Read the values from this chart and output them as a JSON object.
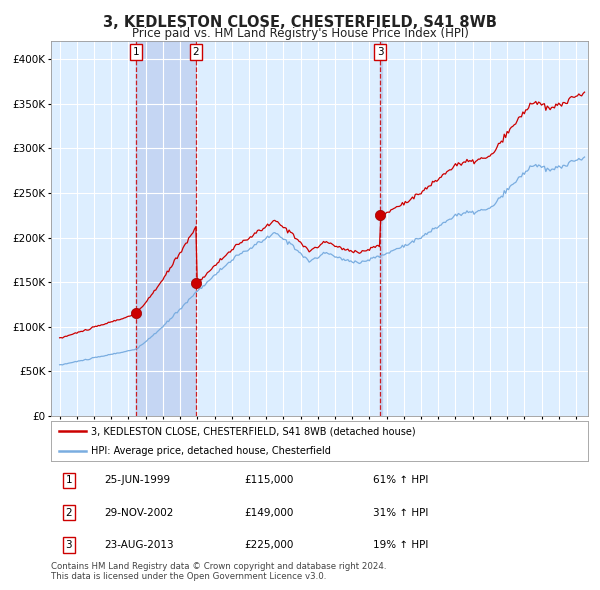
{
  "title": "3, KEDLESTON CLOSE, CHESTERFIELD, S41 8WB",
  "subtitle": "Price paid vs. HM Land Registry's House Price Index (HPI)",
  "table_rows": [
    [
      "1",
      "25-JUN-1999",
      "£115,000",
      "61% ↑ HPI"
    ],
    [
      "2",
      "29-NOV-2002",
      "£149,000",
      "31% ↑ HPI"
    ],
    [
      "3",
      "23-AUG-2013",
      "£225,000",
      "19% ↑ HPI"
    ]
  ],
  "legend_line1": "3, KEDLESTON CLOSE, CHESTERFIELD, S41 8WB (detached house)",
  "legend_line2": "HPI: Average price, detached house, Chesterfield",
  "footer": "Contains HM Land Registry data © Crown copyright and database right 2024.\nThis data is licensed under the Open Government Licence v3.0.",
  "price_color": "#cc0000",
  "hpi_color": "#7aade0",
  "bg_color": "#ffffff",
  "plot_bg": "#ddeeff",
  "grid_color": "#ffffff",
  "shade_color": "#bbccee",
  "dashed_color": "#cc0000",
  "ylim": [
    0,
    420000
  ],
  "yticks": [
    0,
    50000,
    100000,
    150000,
    200000,
    250000,
    300000,
    350000,
    400000
  ],
  "xlim_start": 1994.5,
  "xlim_end": 2025.7,
  "sale_years": [
    1999.458,
    2002.917,
    2013.625
  ],
  "sale_prices": [
    115000,
    149000,
    225000
  ],
  "sale_labels": [
    "1",
    "2",
    "3"
  ]
}
